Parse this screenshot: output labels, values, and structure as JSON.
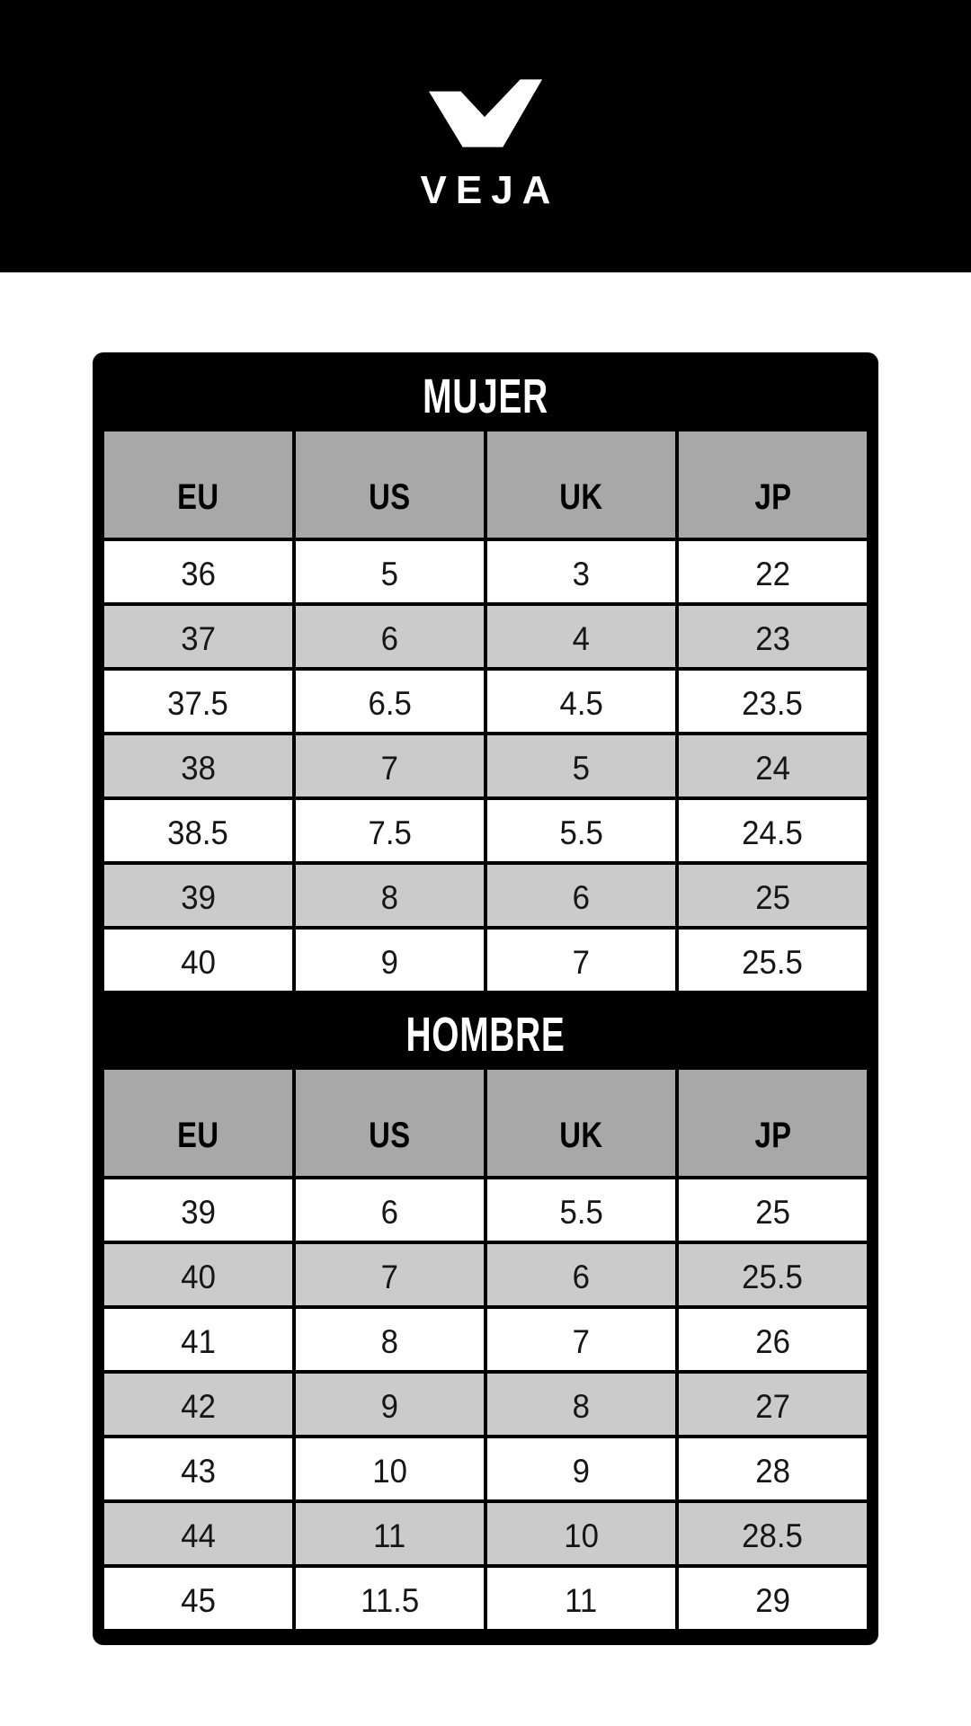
{
  "brand": {
    "logo_text": "VEJA",
    "logo_icon": "veja-check-logo"
  },
  "colors": {
    "banner_bg": "#000000",
    "page_bg": "#ffffff",
    "card_bg": "#000000",
    "header_cell_bg": "#a8a8a8",
    "row_bg": "#ffffff",
    "row_alt_bg": "#cbcbcb",
    "title_text": "#ffffff",
    "cell_text": "#161616",
    "head_text": "#000000"
  },
  "tables": [
    {
      "title": "MUJER",
      "columns": [
        "EU",
        "US",
        "UK",
        "JP"
      ],
      "rows": [
        [
          "36",
          "5",
          "3",
          "22"
        ],
        [
          "37",
          "6",
          "4",
          "23"
        ],
        [
          "37.5",
          "6.5",
          "4.5",
          "23.5"
        ],
        [
          "38",
          "7",
          "5",
          "24"
        ],
        [
          "38.5",
          "7.5",
          "5.5",
          "24.5"
        ],
        [
          "39",
          "8",
          "6",
          "25"
        ],
        [
          "40",
          "9",
          "7",
          "25.5"
        ]
      ]
    },
    {
      "title": "HOMBRE",
      "columns": [
        "EU",
        "US",
        "UK",
        "JP"
      ],
      "rows": [
        [
          "39",
          "6",
          "5.5",
          "25"
        ],
        [
          "40",
          "7",
          "6",
          "25.5"
        ],
        [
          "41",
          "8",
          "7",
          "26"
        ],
        [
          "42",
          "9",
          "8",
          "27"
        ],
        [
          "43",
          "10",
          "9",
          "28"
        ],
        [
          "44",
          "11",
          "10",
          "28.5"
        ],
        [
          "45",
          "11.5",
          "11",
          "29"
        ]
      ]
    }
  ]
}
